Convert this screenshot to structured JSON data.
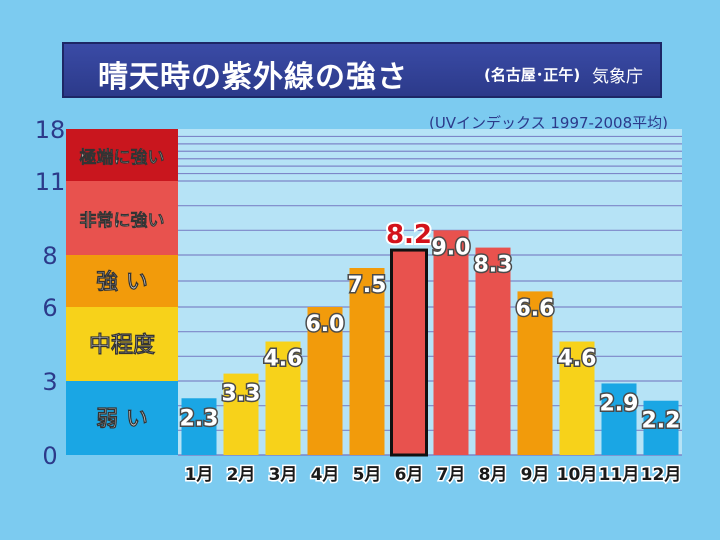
{
  "title": {
    "main": "晴天時の紫外線の強さ",
    "sub": "(名古屋･正午)",
    "source": "気象庁"
  },
  "note": "(UVインデックス 1997-2008平均)",
  "colors": {
    "background": "#7ccbf0",
    "plot_bg": "#b6e3f6",
    "gridline": "#7d86c8",
    "axis_text": "#2c3a8a",
    "weak": "#1aa6e4",
    "moderate": "#f7d21a",
    "strong": "#f29b0b",
    "very_strong": "#e8524e",
    "extreme": "#c9161e",
    "highlight_label": "#d3121b"
  },
  "chart_data": {
    "type": "bar",
    "title": "晴天時の紫外線の強さ",
    "categories": [
      "1月",
      "2月",
      "3月",
      "4月",
      "5月",
      "6月",
      "7月",
      "8月",
      "9月",
      "10月",
      "11月",
      "12月"
    ],
    "values": [
      2.3,
      3.3,
      4.6,
      6.0,
      7.5,
      8.2,
      9.0,
      8.3,
      6.6,
      4.6,
      2.9,
      2.2
    ],
    "value_labels": [
      "2.3",
      "3.3",
      "4.6",
      "6.0",
      "7.5",
      "8.2",
      "9.0",
      "8.3",
      "6.6",
      "4.6",
      "2.9",
      "2.2"
    ],
    "y_ticks": [
      "0",
      "3",
      "6",
      "8",
      "11",
      "18"
    ],
    "y_tick_values": [
      0,
      3,
      6,
      8,
      11,
      18
    ],
    "highlight_category": "6月",
    "grid": true,
    "bands": [
      {
        "label": "弱 い",
        "from": 0,
        "to": 3,
        "color": "#1aa6e4"
      },
      {
        "label": "中程度",
        "from": 3,
        "to": 6,
        "color": "#f7d21a"
      },
      {
        "label": "強 い",
        "from": 6,
        "to": 8,
        "color": "#f29b0b"
      },
      {
        "label": "非常に強い",
        "from": 8,
        "to": 11,
        "color": "#e8524e"
      },
      {
        "label": "極端に強い",
        "from": 11,
        "to": 18,
        "color": "#c9161e"
      }
    ]
  }
}
